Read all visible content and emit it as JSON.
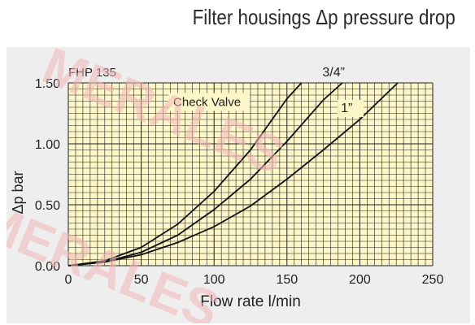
{
  "title": "Filter housings Δp pressure drop",
  "watermark": "MERALES",
  "chart_data": {
    "type": "line",
    "model_label": "FHP 135",
    "annotation": "Check Valve",
    "xlabel": "Flow rate l/min",
    "ylabel": "Δp bar",
    "xlim": [
      0,
      250
    ],
    "ylim": [
      0,
      1.5
    ],
    "xticks": [
      "0",
      "50",
      "100",
      "150",
      "200",
      "250"
    ],
    "yticks": [
      "0.00",
      "0.50",
      "1.00",
      "1.50"
    ],
    "grid": true,
    "colors": {
      "plot_bg": "#fcf6c8",
      "grid": "#222222",
      "curve": "#111111",
      "panel": "#eeeeef"
    },
    "series": [
      {
        "name": "check-valve",
        "x": [
          0,
          25,
          50,
          75,
          100,
          125,
          150,
          160
        ],
        "y": [
          0,
          0.04,
          0.15,
          0.34,
          0.61,
          0.95,
          1.37,
          1.5
        ]
      },
      {
        "name": "3/4”",
        "x": [
          0,
          25,
          50,
          75,
          100,
          125,
          150,
          175,
          188
        ],
        "y": [
          0,
          0.03,
          0.11,
          0.25,
          0.46,
          0.71,
          1.02,
          1.36,
          1.5
        ]
      },
      {
        "name": "1”",
        "x": [
          0,
          25,
          50,
          75,
          100,
          125,
          150,
          175,
          200,
          226
        ],
        "y": [
          0,
          0.03,
          0.09,
          0.19,
          0.32,
          0.49,
          0.71,
          0.95,
          1.2,
          1.5
        ]
      }
    ],
    "curve_labels": [
      "3/4”",
      "1”"
    ]
  }
}
